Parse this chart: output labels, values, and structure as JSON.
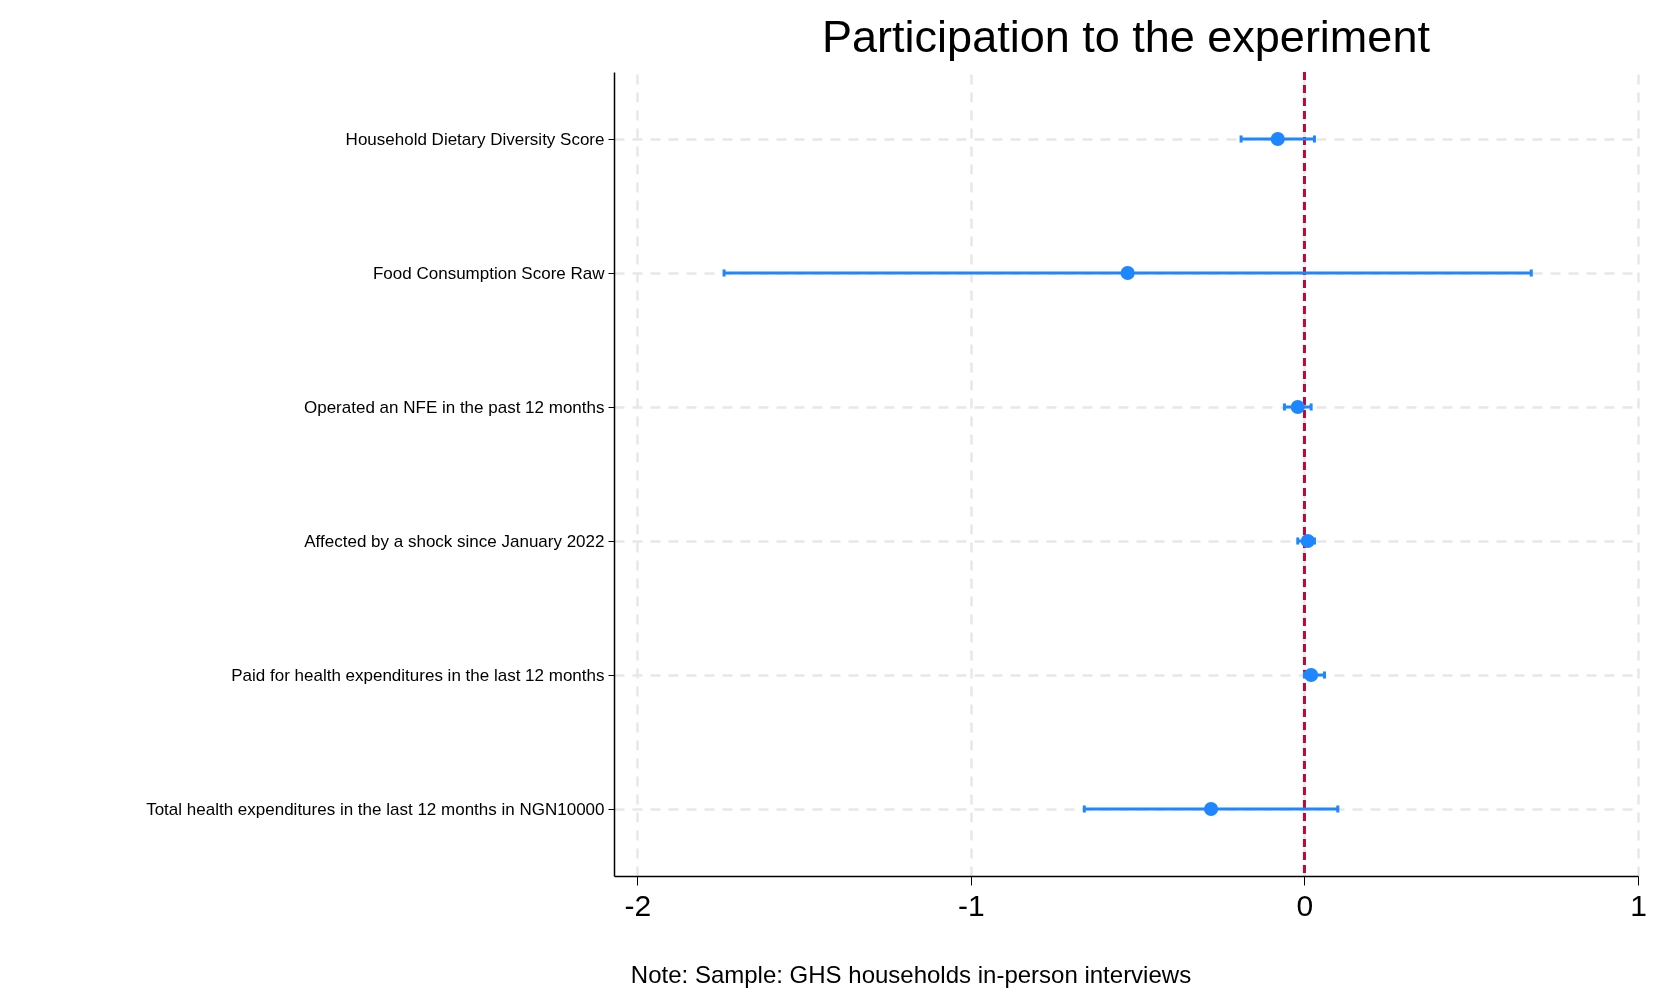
{
  "chart_data": {
    "type": "scatter",
    "orientation": "horizontal",
    "title": "Participation to the experiment",
    "categories": [
      "Household Dietary Diversity Score",
      "Food Consumption Score Raw",
      "Operated an NFE in the past 12 months",
      "Affected by a shock since January 2022",
      "Paid for health expenditures in the last 12 months",
      "Total health expenditures in the last 12 months in NGN10000"
    ],
    "values": [
      -0.08,
      -0.53,
      -0.02,
      0.01,
      0.02,
      -0.28
    ],
    "errors": [
      [
        -0.19,
        0.03
      ],
      [
        -1.74,
        0.68
      ],
      [
        -0.06,
        0.02
      ],
      [
        -0.02,
        0.03
      ],
      [
        0.0,
        0.06
      ],
      [
        -0.66,
        0.1
      ]
    ],
    "color": "#1e86ff",
    "marker": "circle",
    "grid": true,
    "xlim": [
      -2.07,
      1.0
    ],
    "xticks": [
      -2,
      -1,
      0,
      1
    ],
    "ref_lines": [
      {
        "axis": "x",
        "value": 0,
        "color": "#c10534",
        "line_style": "dashed"
      }
    ],
    "annotations": [
      "Note: Sample: GHS households in-person interviews"
    ]
  }
}
